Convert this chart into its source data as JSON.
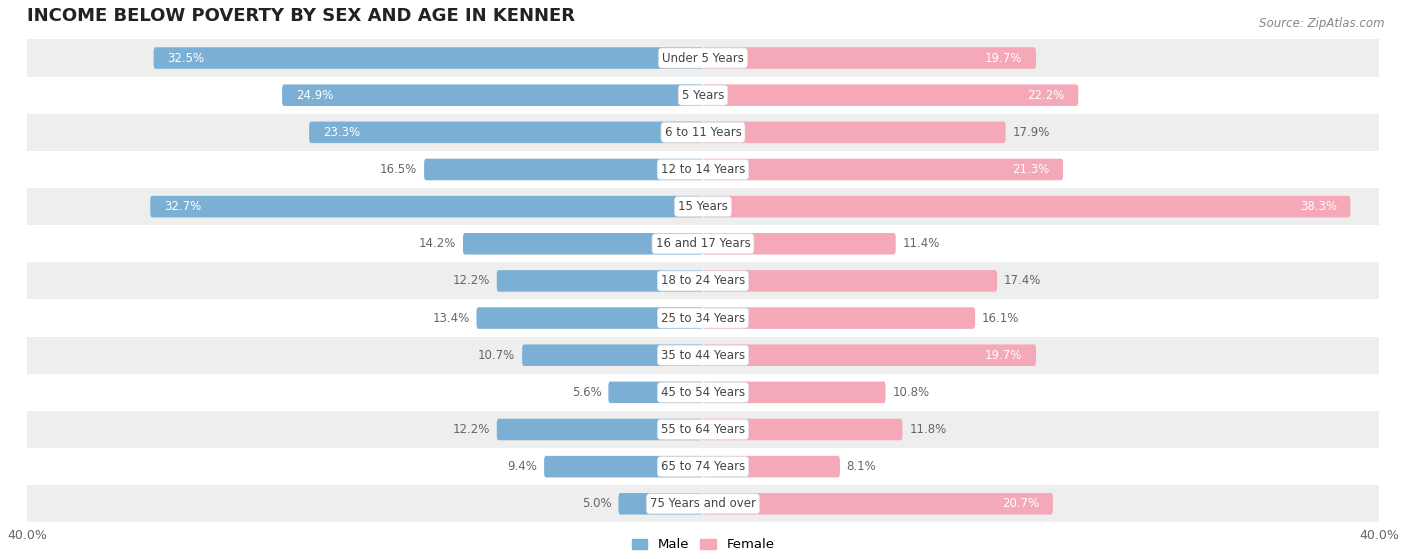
{
  "title": "INCOME BELOW POVERTY BY SEX AND AGE IN KENNER",
  "source": "Source: ZipAtlas.com",
  "categories": [
    "Under 5 Years",
    "5 Years",
    "6 to 11 Years",
    "12 to 14 Years",
    "15 Years",
    "16 and 17 Years",
    "18 to 24 Years",
    "25 to 34 Years",
    "35 to 44 Years",
    "45 to 54 Years",
    "55 to 64 Years",
    "65 to 74 Years",
    "75 Years and over"
  ],
  "male_values": [
    32.5,
    24.9,
    23.3,
    16.5,
    32.7,
    14.2,
    12.2,
    13.4,
    10.7,
    5.6,
    12.2,
    9.4,
    5.0
  ],
  "female_values": [
    19.7,
    22.2,
    17.9,
    21.3,
    38.3,
    11.4,
    17.4,
    16.1,
    19.7,
    10.8,
    11.8,
    8.1,
    20.7
  ],
  "male_color": "#7bafd4",
  "female_color": "#f4a8b8",
  "background_row_even": "#eeeeee",
  "background_row_odd": "#ffffff",
  "axis_max": 40.0,
  "bar_height": 0.58,
  "title_fontsize": 13,
  "label_fontsize": 8.5,
  "category_fontsize": 8.5,
  "source_fontsize": 8.5
}
